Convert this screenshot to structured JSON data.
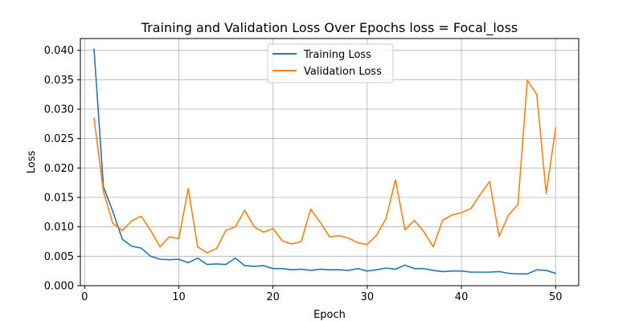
{
  "chart_data": {
    "type": "line",
    "title": "Training and Validation Loss Over Epochs loss = Focal_loss",
    "xlabel": "Epoch",
    "ylabel": "Loss",
    "xlim": [
      -0.45,
      52.45
    ],
    "ylim": [
      0,
      0.042
    ],
    "xticks": [
      0,
      10,
      20,
      30,
      40,
      50
    ],
    "yticks": [
      0.0,
      0.005,
      0.01,
      0.015,
      0.02,
      0.025,
      0.03,
      0.035,
      0.04
    ],
    "ytick_labels": [
      "0.000",
      "0.005",
      "0.010",
      "0.015",
      "0.020",
      "0.025",
      "0.030",
      "0.035",
      "0.040"
    ],
    "grid": true,
    "legend_position": "top-center",
    "x": [
      1,
      2,
      3,
      4,
      5,
      6,
      7,
      8,
      9,
      10,
      11,
      12,
      13,
      14,
      15,
      16,
      17,
      18,
      19,
      20,
      21,
      22,
      23,
      24,
      25,
      26,
      27,
      28,
      29,
      30,
      31,
      32,
      33,
      34,
      35,
      36,
      37,
      38,
      39,
      40,
      41,
      42,
      43,
      44,
      45,
      46,
      47,
      48,
      49,
      50
    ],
    "series": [
      {
        "name": "Training Loss",
        "color": "#1f77b4",
        "values": [
          0.0402,
          0.0168,
          0.0126,
          0.0079,
          0.0067,
          0.0064,
          0.005,
          0.0045,
          0.0044,
          0.0045,
          0.0039,
          0.0047,
          0.0036,
          0.0037,
          0.0036,
          0.0047,
          0.0034,
          0.0033,
          0.0034,
          0.0029,
          0.0029,
          0.0027,
          0.0028,
          0.0026,
          0.0028,
          0.0027,
          0.0027,
          0.0026,
          0.0029,
          0.0025,
          0.0027,
          0.003,
          0.0028,
          0.0035,
          0.0029,
          0.0029,
          0.0026,
          0.0024,
          0.0025,
          0.0025,
          0.0023,
          0.0023,
          0.0023,
          0.0024,
          0.0021,
          0.002,
          0.002,
          0.0027,
          0.0026,
          0.0021
        ]
      },
      {
        "name": "Validation Loss",
        "color": "#ff7f0e",
        "values": [
          0.0285,
          0.016,
          0.0106,
          0.0094,
          0.011,
          0.0118,
          0.0094,
          0.0066,
          0.0083,
          0.008,
          0.0165,
          0.0066,
          0.0056,
          0.0063,
          0.0094,
          0.01,
          0.0128,
          0.01,
          0.0091,
          0.0097,
          0.0076,
          0.0071,
          0.0075,
          0.013,
          0.0108,
          0.0083,
          0.0085,
          0.0081,
          0.0073,
          0.007,
          0.0086,
          0.0114,
          0.018,
          0.0095,
          0.0111,
          0.0092,
          0.0066,
          0.0111,
          0.012,
          0.0124,
          0.0131,
          0.0155,
          0.0177,
          0.0084,
          0.012,
          0.0138,
          0.0349,
          0.0325,
          0.0157,
          0.0268
        ]
      }
    ]
  }
}
